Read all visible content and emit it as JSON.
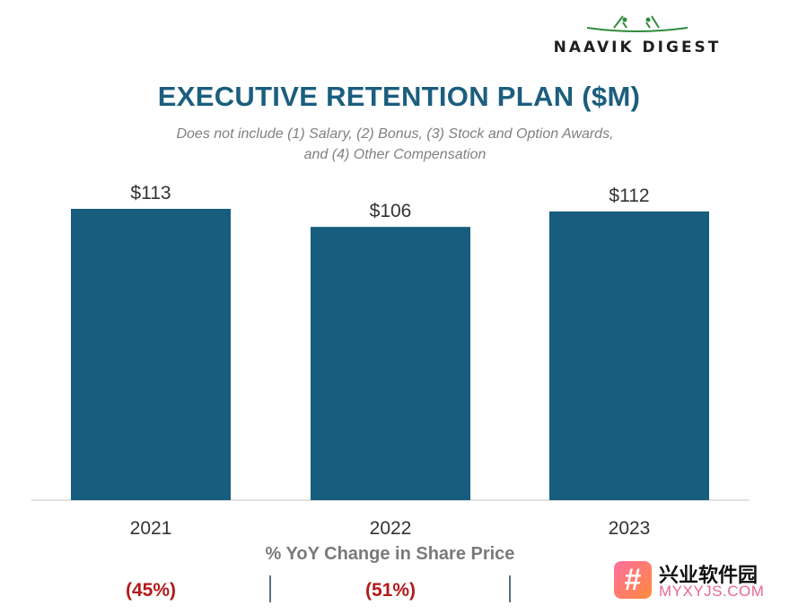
{
  "logo": {
    "text": "NAAVIK DIGEST"
  },
  "chart_data": {
    "type": "bar",
    "title": "EXECUTIVE RETENTION PLAN ($M)",
    "subtitle_lines": [
      "Does not include (1) Salary, (2) Bonus, (3) Stock and Option Awards,",
      "and (4) Other Compensation"
    ],
    "categories": [
      "2021",
      "2022",
      "2023"
    ],
    "values": [
      113,
      106,
      112
    ],
    "data_labels": [
      "$113",
      "$106",
      "$112"
    ],
    "ylim": [
      0,
      113
    ],
    "grid": false,
    "bar_color": "#175d7e"
  },
  "footer": {
    "label": "% YoY Change in Share Price",
    "yoy": [
      "(45%)",
      "(51%)"
    ]
  },
  "watermark": {
    "icon": "#",
    "cn": "兴业软件园",
    "en": "MYXYJS.COM"
  }
}
